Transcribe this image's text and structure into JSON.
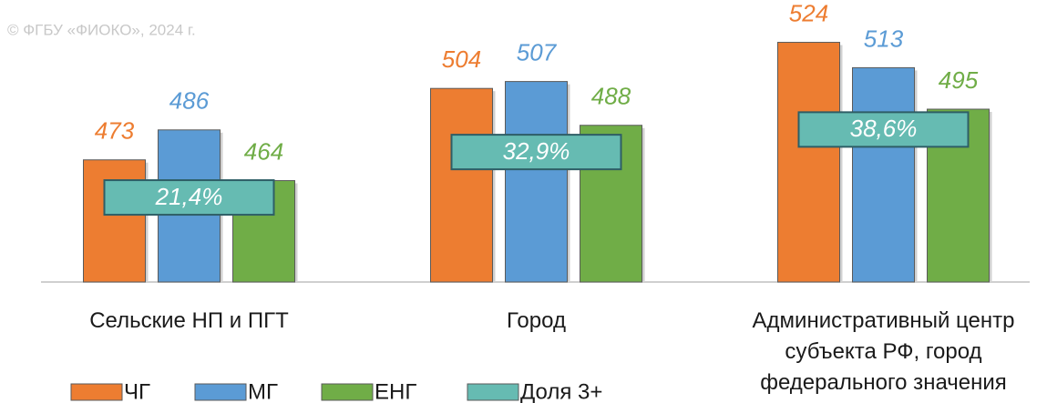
{
  "chart_data": {
    "type": "bar",
    "subtitle": "© ФГБУ «ФИОКО», 2024 г.",
    "categories": [
      "Сельские НП и ПГТ",
      "Город",
      "Административный центр субъекта РФ, город федерального значения"
    ],
    "series": [
      {
        "name": "ЧГ",
        "color": "#ed7d31",
        "values": [
          473,
          504,
          524
        ]
      },
      {
        "name": "МГ",
        "color": "#5b9bd5",
        "values": [
          486,
          507,
          513
        ]
      },
      {
        "name": "ЕНГ",
        "color": "#70ad47",
        "values": [
          464,
          488,
          495
        ]
      },
      {
        "name": "Доля 3+",
        "color": "#66bbb2",
        "type": "label-box",
        "axis": "y2",
        "values": [
          21.4,
          32.9,
          38.6
        ],
        "value_labels": [
          "21,4%",
          "32,9%",
          "38,6%"
        ]
      }
    ],
    "ylim": [
      420,
      540
    ],
    "yticks": [],
    "y2lim": [
      0,
      70
    ],
    "y2ticks": [],
    "legend": "bottom-left"
  }
}
